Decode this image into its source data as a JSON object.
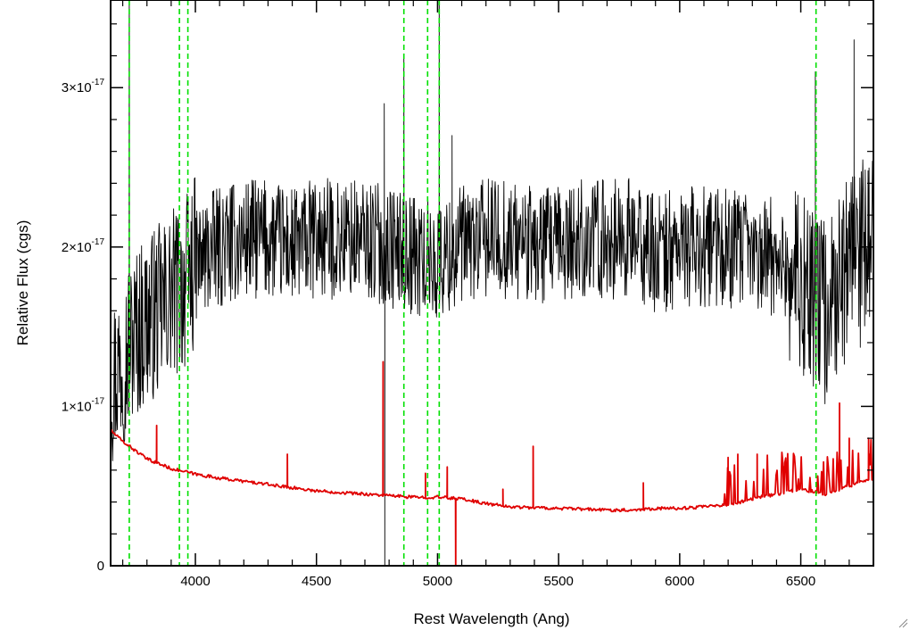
{
  "chart_data": {
    "type": "line",
    "title": "",
    "xlabel": "Rest Wavelength (Ang)",
    "ylabel": "Relative Flux (cgs)",
    "xlim": [
      3650,
      6800
    ],
    "ylim": [
      0,
      3.55e-17
    ],
    "x_ticks": [
      4000,
      4500,
      5000,
      5500,
      6000,
      6500
    ],
    "x_tick_labels": [
      "4000",
      "4500",
      "5000",
      "5500",
      "6000",
      "6500"
    ],
    "y_ticks": [
      {
        "value": 0,
        "mantissa": "0",
        "exponent": ""
      },
      {
        "value": 1e-17,
        "mantissa": "1×10",
        "exponent": "-17"
      },
      {
        "value": 2e-17,
        "mantissa": "2×10",
        "exponent": "-17"
      },
      {
        "value": 3e-17,
        "mantissa": "3×10",
        "exponent": "-17"
      }
    ],
    "grid": false,
    "series": [
      {
        "color": "#000000",
        "style": "noisy",
        "x": [
          3650,
          3700,
          3750,
          3800,
          3850,
          3900,
          3950,
          4000,
          4100,
          4200,
          4300,
          4400,
          4500,
          4600,
          4700,
          4800,
          4900,
          5000,
          5100,
          5200,
          5300,
          5400,
          5500,
          5600,
          5700,
          5800,
          5900,
          6000,
          6100,
          6200,
          6300,
          6400,
          6500,
          6600,
          6700,
          6800
        ],
        "y": [
          1.15e-17,
          1.3e-17,
          1.45e-17,
          1.55e-17,
          1.6e-17,
          1.7e-17,
          1.75e-17,
          1.9e-17,
          2e-17,
          2.05e-17,
          2.05e-17,
          2e-17,
          2.05e-17,
          2.05e-17,
          2.05e-17,
          2e-17,
          1.95e-17,
          1.9e-17,
          2e-17,
          2.05e-17,
          2.05e-17,
          2e-17,
          2e-17,
          2.05e-17,
          2.05e-17,
          2.05e-17,
          1.95e-17,
          2e-17,
          2e-17,
          2e-17,
          1.95e-17,
          1.95e-17,
          1.75e-17,
          1.6e-17,
          1.9e-17,
          2e-17
        ],
        "spikes": [
          {
            "x": 3727,
            "y": 3.6e-17
          },
          {
            "x": 4780,
            "y": 2.9e-17
          },
          {
            "x": 4782,
            "y": -2e-18
          },
          {
            "x": 4861,
            "y": 3.2e-17
          },
          {
            "x": 5007,
            "y": 3.6e-17
          },
          {
            "x": 5060,
            "y": 2.7e-17
          },
          {
            "x": 6560,
            "y": 3.1e-17
          },
          {
            "x": 6720,
            "y": 3.3e-17
          }
        ]
      },
      {
        "color": "#e00000",
        "style": "model",
        "x": [
          3650,
          3700,
          3800,
          3900,
          4000,
          4100,
          4200,
          4300,
          4400,
          4500,
          4600,
          4700,
          4800,
          4900,
          5000,
          5100,
          5200,
          5300,
          5400,
          5500,
          5600,
          5700,
          5800,
          5900,
          6000,
          6100,
          6200,
          6300,
          6400,
          6500,
          6600,
          6700,
          6800
        ],
        "y": [
          8.5e-18,
          7.8e-18,
          6.7e-18,
          6.1e-18,
          5.75e-18,
          5.5e-18,
          5.3e-18,
          5.1e-18,
          4.9e-18,
          4.7e-18,
          4.6e-18,
          4.5e-18,
          4.4e-18,
          4.3e-18,
          4.3e-18,
          4.2e-18,
          3.9e-18,
          3.7e-18,
          3.65e-18,
          3.6e-18,
          3.55e-18,
          3.5e-18,
          3.5e-18,
          3.6e-18,
          3.6e-18,
          3.7e-18,
          3.8e-18,
          4.2e-18,
          4.5e-18,
          4.8e-18,
          4.5e-18,
          5e-18,
          5.5e-18
        ],
        "spikes": [
          {
            "x": 3840,
            "y": 8.8e-18
          },
          {
            "x": 4380,
            "y": 7e-18
          },
          {
            "x": 4775,
            "y": 1.28e-17
          },
          {
            "x": 4950,
            "y": 5.8e-18
          },
          {
            "x": 5040,
            "y": 6.2e-18
          },
          {
            "x": 5075,
            "y": -5e-19
          },
          {
            "x": 5270,
            "y": 4.8e-18
          },
          {
            "x": 5395,
            "y": 7.5e-18
          },
          {
            "x": 5850,
            "y": 5.2e-18
          },
          {
            "x": 6200,
            "y": 6.8e-18
          },
          {
            "x": 6240,
            "y": 7e-18
          },
          {
            "x": 6320,
            "y": 7e-18
          },
          {
            "x": 6430,
            "y": 6.2e-18
          },
          {
            "x": 6660,
            "y": 1.02e-17
          },
          {
            "x": 6700,
            "y": 8e-18
          },
          {
            "x": 6780,
            "y": 8e-18
          }
        ]
      }
    ],
    "reference_lines": {
      "color": "#00e000",
      "style": "dashed",
      "x": [
        3727,
        3934,
        3969,
        4861,
        4959,
        5007,
        6563
      ]
    }
  }
}
